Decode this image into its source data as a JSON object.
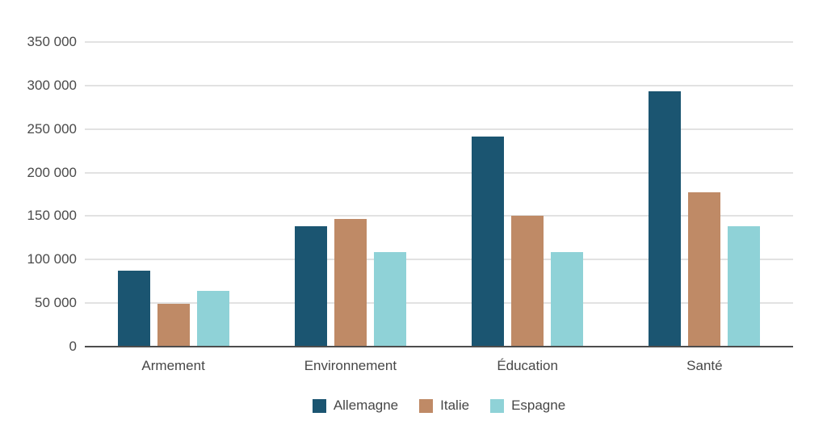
{
  "chart_data": {
    "type": "bar",
    "title": "",
    "xlabel": "",
    "ylabel": "",
    "categories": [
      "Armement",
      "Environnement",
      "Éducation",
      "Santé"
    ],
    "series": [
      {
        "name": "Allemagne",
        "color": "#1b5571",
        "values": [
          87000,
          138000,
          241000,
          293000
        ]
      },
      {
        "name": "Italie",
        "color": "#bf8a66",
        "values": [
          49000,
          147000,
          150000,
          177000
        ]
      },
      {
        "name": "Espagne",
        "color": "#8fd2d7",
        "values": [
          64000,
          109000,
          109000,
          138000
        ]
      }
    ],
    "ylim": [
      0,
      350000
    ],
    "ytick_step": 50000,
    "ytick_labels": [
      "0",
      "50 000",
      "100 000",
      "150 000",
      "200 000",
      "250 000",
      "300 000",
      "350 000"
    ],
    "grid": true,
    "legend_position": "bottom"
  },
  "colors": {
    "background": "#ffffff",
    "gridline": "#e2e2e2",
    "axis_line": "#4d4d4d",
    "tick_text": "#4a4a4a",
    "label_text": "#474747"
  }
}
